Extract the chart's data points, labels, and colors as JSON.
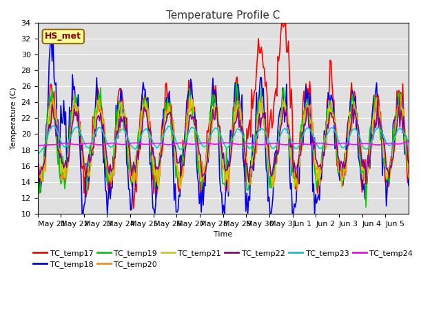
{
  "title": "Temperature Profile C",
  "xlabel": "Time",
  "ylabel": "Temperature (C)",
  "ylim": [
    10,
    34
  ],
  "yticks": [
    10,
    12,
    14,
    16,
    18,
    20,
    22,
    24,
    26,
    28,
    30,
    32,
    34
  ],
  "annotation": "HS_met",
  "annotation_color": "#8B0000",
  "annotation_bg": "#FFFF99",
  "bg_color": "#E0E0E0",
  "series_names": [
    "TC_temp17",
    "TC_temp18",
    "TC_temp19",
    "TC_temp20",
    "TC_temp21",
    "TC_temp22",
    "TC_temp23",
    "TC_temp24"
  ],
  "series_colors": [
    "#FF0000",
    "#0000EE",
    "#00CC00",
    "#FF8C00",
    "#CCCC00",
    "#8B008B",
    "#00CCCC",
    "#FF00FF"
  ],
  "legend_ncol": 6,
  "xtick_labels": [
    "May 21",
    "May 22",
    "May 23",
    "May 24",
    "May 25",
    "May 26",
    "May 27",
    "May 28",
    "May 29",
    "May 30",
    "May 31",
    "Jun 1",
    "Jun 2",
    "Jun 3",
    "Jun 4",
    "Jun 5"
  ],
  "n_days": 16
}
